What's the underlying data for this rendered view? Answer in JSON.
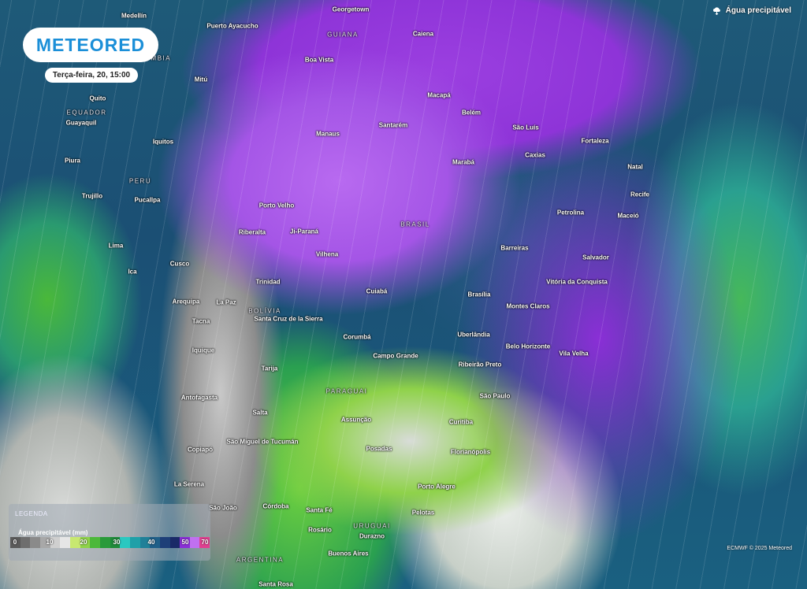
{
  "header": {
    "brand": "METEORED",
    "datetime": "Terça-feira, 20, 15:00",
    "layer_label": "Água precipitável",
    "layer_icon": "cloud-rain-icon"
  },
  "map": {
    "labels": [
      "Medellín",
      "Georgetown",
      "Puerto Ayacucho",
      "GUIANA",
      "Caiena",
      "Boa Vista",
      "Mitú",
      "Quito",
      "EQUADOR",
      "Guayaquil",
      "Macapá",
      "Belém",
      "Santarém",
      "São Luís",
      "Manaus",
      "Iquitos",
      "Fortaleza",
      "Caxias",
      "Marabá",
      "Piura",
      "Natal",
      "PERU",
      "Recife",
      "Trujillo",
      "Pucallpa",
      "Porto Velho",
      "Petrolina",
      "Maceió",
      "BRASIL",
      "Riberalta",
      "Ji-Paraná",
      "Lima",
      "Barreiras",
      "Vilhena",
      "Salvador",
      "Cusco",
      "Ica",
      "Trinidad",
      "Vitória da Conquista",
      "Cuiabá",
      "Brasília",
      "Arequipa",
      "La Paz",
      "Montes Claros",
      "BOLÍVIA",
      "Tacna",
      "Santa Cruz de la Sierra",
      "Iquique",
      "Corumbá",
      "Uberlândia",
      "Belo Horizonte",
      "Campo Grande",
      "Vila Velha",
      "Ribeirão Preto",
      "Tarija",
      "PARAGUAI",
      "São Paulo",
      "Antofagasta",
      "Salta",
      "Assunção",
      "Curitiba",
      "São Miguel de Tucumán",
      "Posadas",
      "Copiapó",
      "Florianópolis",
      "Porto Alegre",
      "La Serena",
      "Córdoba",
      "Santa Fé",
      "São João",
      "Pelotas",
      "URUGUAI",
      "Rosário",
      "Durazno",
      "ARGENTINA",
      "Buenos Aires",
      "Santa Rosa",
      "COLÔMBIA"
    ]
  },
  "legend": {
    "title": "LEGENDA",
    "subtitle": "Água precipitável (mm)",
    "ticks": [
      "0",
      "10",
      "20",
      "30",
      "40",
      "50",
      "70"
    ],
    "colors": [
      "#5a5a5a",
      "#6e6e6e",
      "#8a8a8a",
      "#a8a8a8",
      "#cfcfcf",
      "#e6e6e6",
      "#c8e870",
      "#8fd24a",
      "#4cb83a",
      "#2a9a3a",
      "#1f8a3a",
      "#2ac8c0",
      "#1fa0a8",
      "#1f8098",
      "#1f5f88",
      "#1e3f78",
      "#1a2a68",
      "#8a2fd6",
      "#c070f0",
      "#e04090"
    ]
  },
  "footer": {
    "credit": "ECMWF © 2025 Meteored"
  }
}
